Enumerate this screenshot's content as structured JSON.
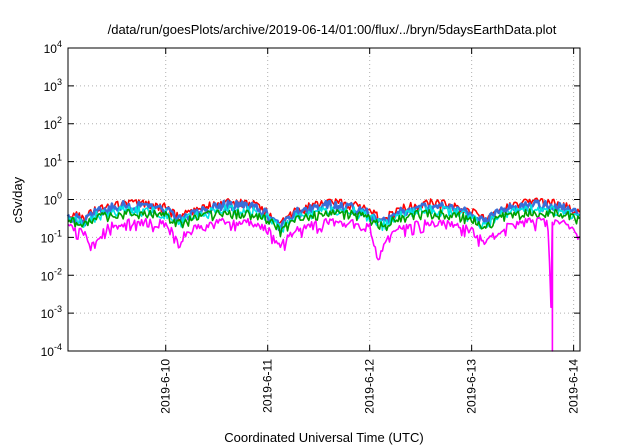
{
  "chart_data": {
    "type": "line",
    "title": "/data/run/goesPlots/archive/2019-06-14/01:00/flux/../bryn/5daysEarthData.plot",
    "xlabel": "Coordinated Universal Time (UTC)",
    "ylabel": "cSv/day",
    "yscale": "log",
    "ylim": [
      0.0001,
      10000
    ],
    "xlim": [
      "2019-06-09T01:00",
      "2019-06-14T01:30"
    ],
    "yticks": [
      {
        "value": 0.0001,
        "base": "10",
        "exp": "-4"
      },
      {
        "value": 0.001,
        "base": "10",
        "exp": "-3"
      },
      {
        "value": 0.01,
        "base": "10",
        "exp": "-2"
      },
      {
        "value": 0.1,
        "base": "10",
        "exp": "-1"
      },
      {
        "value": 1,
        "base": "10",
        "exp": "0"
      },
      {
        "value": 10,
        "base": "10",
        "exp": "1"
      },
      {
        "value": 100,
        "base": "10",
        "exp": "2"
      },
      {
        "value": 1000,
        "base": "10",
        "exp": "3"
      },
      {
        "value": 10000,
        "base": "10",
        "exp": "4"
      }
    ],
    "xticks": [
      {
        "value": "2019-06-10T00:00",
        "label": "2019-6-10"
      },
      {
        "value": "2019-06-11T00:00",
        "label": "2019-6-11"
      },
      {
        "value": "2019-06-12T00:00",
        "label": "2019-6-12"
      },
      {
        "value": "2019-06-13T00:00",
        "label": "2019-6-13"
      },
      {
        "value": "2019-06-14T00:00",
        "label": "2019-6-14"
      }
    ],
    "grid": true,
    "series": [
      {
        "color": "#ff0000",
        "values": [
          [
            "2019-06-09T01:00",
            0.42
          ],
          [
            "2019-06-09T05:00",
            0.32
          ],
          [
            "2019-06-09T08:00",
            0.55
          ],
          [
            "2019-06-09T14:00",
            0.78
          ],
          [
            "2019-06-09T20:00",
            0.72
          ],
          [
            "2019-06-10T00:00",
            0.6
          ],
          [
            "2019-06-10T03:00",
            0.33
          ],
          [
            "2019-06-10T07:00",
            0.55
          ],
          [
            "2019-06-10T14:00",
            0.8
          ],
          [
            "2019-06-10T20:00",
            0.75
          ],
          [
            "2019-06-11T00:00",
            0.48
          ],
          [
            "2019-06-11T03:00",
            0.22
          ],
          [
            "2019-06-11T07:00",
            0.52
          ],
          [
            "2019-06-11T14:00",
            0.8
          ],
          [
            "2019-06-11T20:00",
            0.72
          ],
          [
            "2019-06-12T00:00",
            0.5
          ],
          [
            "2019-06-12T03:00",
            0.28
          ],
          [
            "2019-06-12T07:00",
            0.55
          ],
          [
            "2019-06-12T14:00",
            0.78
          ],
          [
            "2019-06-12T20:00",
            0.7
          ],
          [
            "2019-06-13T00:00",
            0.45
          ],
          [
            "2019-06-13T03:00",
            0.3
          ],
          [
            "2019-06-13T07:00",
            0.6
          ],
          [
            "2019-06-13T14:00",
            0.82
          ],
          [
            "2019-06-13T20:00",
            0.75
          ],
          [
            "2019-06-14T00:00",
            0.55
          ],
          [
            "2019-06-14T01:30",
            0.4
          ]
        ]
      },
      {
        "color": "#3a6ed8",
        "values": [
          [
            "2019-06-09T01:00",
            0.35
          ],
          [
            "2019-06-09T05:00",
            0.27
          ],
          [
            "2019-06-09T08:00",
            0.48
          ],
          [
            "2019-06-09T14:00",
            0.68
          ],
          [
            "2019-06-09T20:00",
            0.62
          ],
          [
            "2019-06-10T00:00",
            0.52
          ],
          [
            "2019-06-10T03:00",
            0.28
          ],
          [
            "2019-06-10T07:00",
            0.48
          ],
          [
            "2019-06-10T14:00",
            0.7
          ],
          [
            "2019-06-10T20:00",
            0.65
          ],
          [
            "2019-06-11T00:00",
            0.4
          ],
          [
            "2019-06-11T03:00",
            0.18
          ],
          [
            "2019-06-11T07:00",
            0.45
          ],
          [
            "2019-06-11T14:00",
            0.7
          ],
          [
            "2019-06-11T20:00",
            0.62
          ],
          [
            "2019-06-12T00:00",
            0.43
          ],
          [
            "2019-06-12T03:00",
            0.24
          ],
          [
            "2019-06-12T07:00",
            0.48
          ],
          [
            "2019-06-12T14:00",
            0.68
          ],
          [
            "2019-06-12T20:00",
            0.6
          ],
          [
            "2019-06-13T00:00",
            0.38
          ],
          [
            "2019-06-13T03:00",
            0.25
          ],
          [
            "2019-06-13T07:00",
            0.52
          ],
          [
            "2019-06-13T14:00",
            0.72
          ],
          [
            "2019-06-13T20:00",
            0.65
          ],
          [
            "2019-06-14T00:00",
            0.48
          ],
          [
            "2019-06-14T01:30",
            0.34
          ]
        ]
      },
      {
        "color": "#00e5e5",
        "values": [
          [
            "2019-06-09T01:00",
            0.3
          ],
          [
            "2019-06-09T05:00",
            0.23
          ],
          [
            "2019-06-09T08:00",
            0.38
          ],
          [
            "2019-06-09T14:00",
            0.52
          ],
          [
            "2019-06-09T20:00",
            0.48
          ],
          [
            "2019-06-10T00:00",
            0.42
          ],
          [
            "2019-06-10T03:00",
            0.24
          ],
          [
            "2019-06-10T07:00",
            0.38
          ],
          [
            "2019-06-10T14:00",
            0.53
          ],
          [
            "2019-06-10T20:00",
            0.5
          ],
          [
            "2019-06-11T00:00",
            0.33
          ],
          [
            "2019-06-11T03:00",
            0.16
          ],
          [
            "2019-06-11T07:00",
            0.36
          ],
          [
            "2019-06-11T14:00",
            0.53
          ],
          [
            "2019-06-11T20:00",
            0.48
          ],
          [
            "2019-06-12T00:00",
            0.35
          ],
          [
            "2019-06-12T03:00",
            0.2
          ],
          [
            "2019-06-12T07:00",
            0.38
          ],
          [
            "2019-06-12T14:00",
            0.52
          ],
          [
            "2019-06-12T20:00",
            0.47
          ],
          [
            "2019-06-13T00:00",
            0.32
          ],
          [
            "2019-06-13T03:00",
            0.21
          ],
          [
            "2019-06-13T07:00",
            0.41
          ],
          [
            "2019-06-13T14:00",
            0.55
          ],
          [
            "2019-06-13T20:00",
            0.5
          ],
          [
            "2019-06-14T00:00",
            0.4
          ],
          [
            "2019-06-14T01:30",
            0.29
          ]
        ]
      },
      {
        "color": "#00a000",
        "values": [
          [
            "2019-06-09T01:00",
            0.27
          ],
          [
            "2019-06-09T05:00",
            0.21
          ],
          [
            "2019-06-09T08:00",
            0.33
          ],
          [
            "2019-06-09T14:00",
            0.42
          ],
          [
            "2019-06-09T20:00",
            0.4
          ],
          [
            "2019-06-10T00:00",
            0.36
          ],
          [
            "2019-06-10T03:00",
            0.21
          ],
          [
            "2019-06-10T07:00",
            0.33
          ],
          [
            "2019-06-10T14:00",
            0.43
          ],
          [
            "2019-06-10T20:00",
            0.41
          ],
          [
            "2019-06-11T00:00",
            0.29
          ],
          [
            "2019-06-11T03:00",
            0.14
          ],
          [
            "2019-06-11T07:00",
            0.31
          ],
          [
            "2019-06-11T14:00",
            0.43
          ],
          [
            "2019-06-11T20:00",
            0.4
          ],
          [
            "2019-06-12T00:00",
            0.3
          ],
          [
            "2019-06-12T03:00",
            0.18
          ],
          [
            "2019-06-12T07:00",
            0.33
          ],
          [
            "2019-06-12T14:00",
            0.42
          ],
          [
            "2019-06-12T20:00",
            0.39
          ],
          [
            "2019-06-13T00:00",
            0.28
          ],
          [
            "2019-06-13T03:00",
            0.19
          ],
          [
            "2019-06-13T07:00",
            0.35
          ],
          [
            "2019-06-13T14:00",
            0.44
          ],
          [
            "2019-06-13T20:00",
            0.41
          ],
          [
            "2019-06-14T00:00",
            0.34
          ],
          [
            "2019-06-14T01:30",
            0.25
          ]
        ]
      },
      {
        "color": "#ff00ff",
        "values": [
          [
            "2019-06-09T01:00",
            0.2
          ],
          [
            "2019-06-09T05:00",
            0.12
          ],
          [
            "2019-06-09T07:00",
            0.06
          ],
          [
            "2019-06-09T10:00",
            0.18
          ],
          [
            "2019-06-09T14:00",
            0.26
          ],
          [
            "2019-06-09T20:00",
            0.25
          ],
          [
            "2019-06-10T00:00",
            0.22
          ],
          [
            "2019-06-10T03:00",
            0.09
          ],
          [
            "2019-06-10T07:00",
            0.17
          ],
          [
            "2019-06-10T14:00",
            0.26
          ],
          [
            "2019-06-10T20:00",
            0.24
          ],
          [
            "2019-06-11T00:00",
            0.16
          ],
          [
            "2019-06-11T03:00",
            0.06
          ],
          [
            "2019-06-11T07:00",
            0.16
          ],
          [
            "2019-06-11T14:00",
            0.26
          ],
          [
            "2019-06-11T20:00",
            0.24
          ],
          [
            "2019-06-12T00:00",
            0.18
          ],
          [
            "2019-06-12T02:00",
            0.03
          ],
          [
            "2019-06-12T04:00",
            0.08
          ],
          [
            "2019-06-12T07:00",
            0.17
          ],
          [
            "2019-06-12T14:00",
            0.25
          ],
          [
            "2019-06-12T20:00",
            0.22
          ],
          [
            "2019-06-13T00:00",
            0.15
          ],
          [
            "2019-06-13T03:00",
            0.07
          ],
          [
            "2019-06-13T07:00",
            0.18
          ],
          [
            "2019-06-13T14:00",
            0.26
          ],
          [
            "2019-06-13T18:00",
            0.25
          ],
          [
            "2019-06-13T19:00",
            0.0001
          ],
          [
            "2019-06-13T19:10",
            0.22
          ],
          [
            "2019-06-13T22:00",
            0.24
          ],
          [
            "2019-06-14T00:00",
            0.17
          ],
          [
            "2019-06-14T01:30",
            0.1
          ]
        ]
      }
    ]
  }
}
